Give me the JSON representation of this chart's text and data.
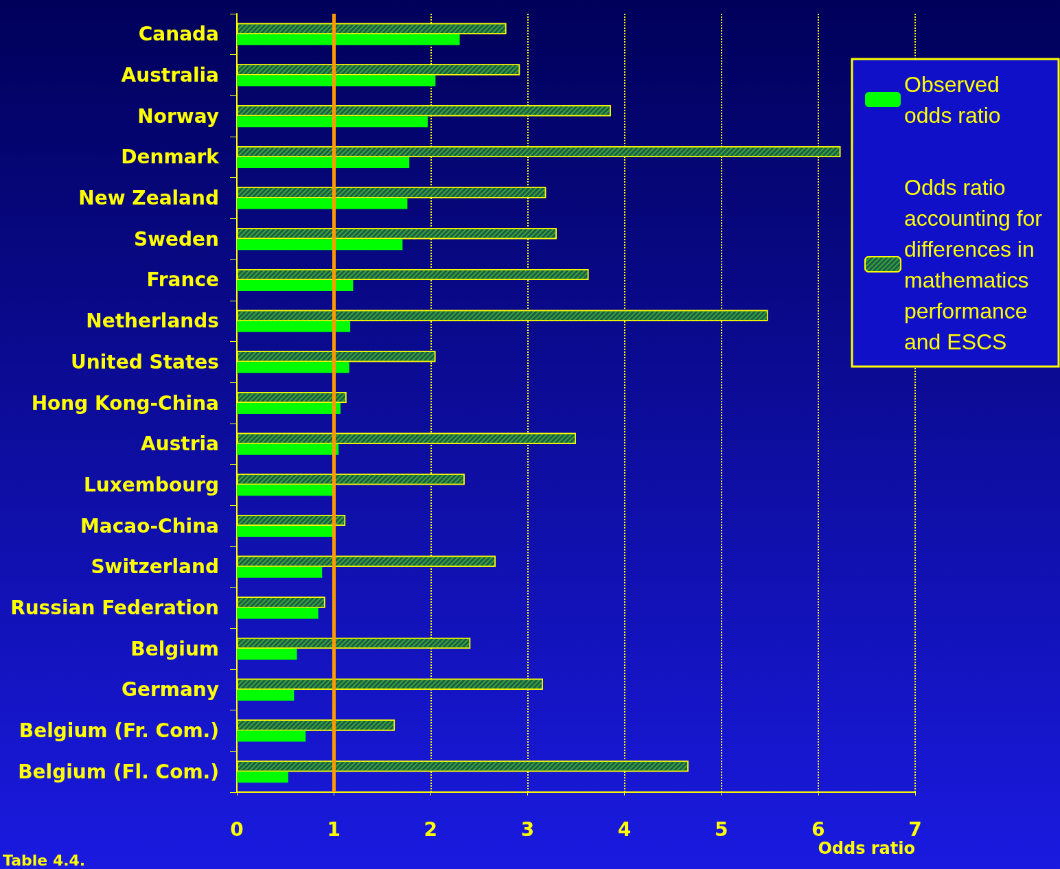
{
  "chart_data": {
    "type": "bar",
    "orientation": "horizontal",
    "xlabel": "Odds ratio",
    "categories": [
      "Canada",
      "Australia",
      "Norway",
      "Denmark",
      "New Zealand",
      "Sweden",
      "France",
      "Netherlands",
      "United States",
      "Hong Kong-China",
      "Austria",
      "Luxembourg",
      "Macao-China",
      "Switzerland",
      "Russian Federation",
      "Belgium",
      "Germany",
      "Belgium (Fr. Com.)",
      "Belgium (Fl. Com.)"
    ],
    "series": [
      {
        "name": "Odds ratio accounting for differences in mathematics performance and ESCS",
        "color": "#1f5a4a",
        "values": [
          2.78,
          2.92,
          3.86,
          6.23,
          3.19,
          3.3,
          3.63,
          5.48,
          2.05,
          1.13,
          3.5,
          2.35,
          1.12,
          2.67,
          0.91,
          2.41,
          3.16,
          1.63,
          4.66
        ]
      },
      {
        "name": "Observed odds ratio",
        "color": "#00ff00",
        "values": [
          2.3,
          2.05,
          1.97,
          1.78,
          1.76,
          1.71,
          1.2,
          1.17,
          1.16,
          1.07,
          1.05,
          1.0,
          1.0,
          0.88,
          0.84,
          0.62,
          0.59,
          0.71,
          0.53
        ]
      }
    ],
    "xlim": [
      0,
      7
    ],
    "xticks": [
      0,
      1,
      2,
      3,
      4,
      5,
      6,
      7
    ],
    "grid": "x",
    "legend": "top right",
    "ref_lines": [
      {
        "axis": "x",
        "value": 1,
        "color": "#ff9900"
      }
    ],
    "annotations": [
      "Table 4.4."
    ]
  }
}
